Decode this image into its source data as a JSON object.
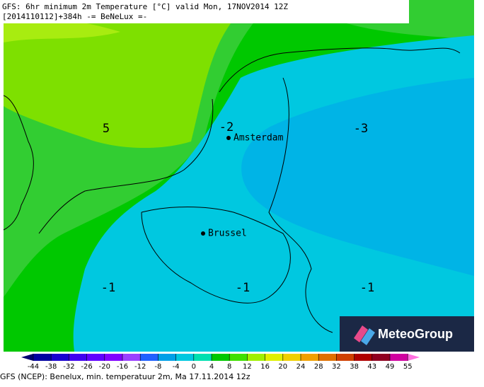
{
  "header": {
    "line1": "GFS: 6hr minimum 2m Temperature [°C] valid Mon, 17NOV2014 12Z",
    "line2": "[2014110112]+384h -= BeNeLux =-"
  },
  "map": {
    "contour_labels": [
      5,
      -2,
      -3,
      -1,
      -1,
      -1
    ],
    "cities": [
      "Amsterdam",
      "Brussel"
    ]
  },
  "colorbar": {
    "ticks": [
      -44,
      -38,
      -32,
      -26,
      -20,
      -16,
      -12,
      -8,
      -4,
      0,
      4,
      8,
      12,
      16,
      20,
      24,
      28,
      32,
      38,
      43,
      49,
      55
    ],
    "colors": [
      "#000070",
      "#0000a0",
      "#1800d0",
      "#4000f0",
      "#6000ff",
      "#8000ff",
      "#9a40ff",
      "#2060ff",
      "#00a0e8",
      "#00c8e0",
      "#00e0b0",
      "#00c800",
      "#40e000",
      "#a0f000",
      "#e0f000",
      "#f0d000",
      "#f0a000",
      "#e07000",
      "#d04000",
      "#b00000",
      "#900020",
      "#d000a0",
      "#ff70e0"
    ]
  },
  "footer": "GFS (NCEP): Benelux, min. temperatuur 2m, Ma 17.11.2014 12z",
  "logo": "MeteoGroup"
}
